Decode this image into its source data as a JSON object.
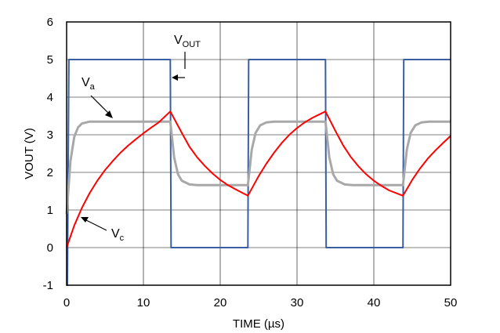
{
  "chart_data": {
    "type": "line",
    "xlabel": "TIME (µs)",
    "ylabel": "VOUT (V)",
    "xlim": [
      0,
      50
    ],
    "ylim": [
      -1,
      6
    ],
    "xticks": [
      0,
      10,
      20,
      30,
      40,
      50
    ],
    "yticks": [
      -1,
      0,
      1,
      2,
      3,
      4,
      5,
      6
    ],
    "grid": true,
    "series": [
      {
        "name": "VOUT",
        "color": "#3a5fa0",
        "points": [
          [
            0,
            -1
          ],
          [
            0.1,
            -1
          ],
          [
            0.3,
            5
          ],
          [
            13.5,
            5
          ],
          [
            13.6,
            0
          ],
          [
            23.6,
            0
          ],
          [
            23.7,
            5
          ],
          [
            33.7,
            5
          ],
          [
            33.8,
            0
          ],
          [
            43.8,
            0
          ],
          [
            43.9,
            5
          ],
          [
            50,
            5
          ]
        ]
      },
      {
        "name": "Va",
        "color": "#a8a8a8",
        "points": [
          [
            0,
            0.9
          ],
          [
            0.5,
            2.3
          ],
          [
            1,
            2.95
          ],
          [
            1.5,
            3.2
          ],
          [
            2,
            3.3
          ],
          [
            3,
            3.35
          ],
          [
            13.5,
            3.35
          ],
          [
            14,
            2.4
          ],
          [
            14.5,
            1.95
          ],
          [
            15,
            1.78
          ],
          [
            16,
            1.68
          ],
          [
            17,
            1.66
          ],
          [
            23.6,
            1.66
          ],
          [
            24.1,
            2.6
          ],
          [
            24.6,
            3.05
          ],
          [
            25.2,
            3.25
          ],
          [
            26,
            3.33
          ],
          [
            27,
            3.35
          ],
          [
            33.7,
            3.35
          ],
          [
            34.2,
            2.4
          ],
          [
            34.7,
            1.95
          ],
          [
            35.2,
            1.78
          ],
          [
            36.2,
            1.68
          ],
          [
            37.2,
            1.66
          ],
          [
            43.8,
            1.66
          ],
          [
            44.3,
            2.6
          ],
          [
            44.8,
            3.05
          ],
          [
            45.4,
            3.25
          ],
          [
            46.2,
            3.33
          ],
          [
            47.2,
            3.35
          ],
          [
            50,
            3.35
          ]
        ]
      },
      {
        "name": "Vc",
        "color": "#ff0000",
        "points": [
          [
            0,
            0
          ],
          [
            1,
            0.59
          ],
          [
            2,
            1.06
          ],
          [
            3,
            1.45
          ],
          [
            4,
            1.78
          ],
          [
            5,
            2.06
          ],
          [
            6,
            2.3
          ],
          [
            7,
            2.52
          ],
          [
            8,
            2.71
          ],
          [
            9,
            2.88
          ],
          [
            10,
            3.04
          ],
          [
            11,
            3.19
          ],
          [
            12,
            3.33
          ],
          [
            13.5,
            3.62
          ],
          [
            15,
            3.05
          ],
          [
            16,
            2.68
          ],
          [
            17,
            2.4
          ],
          [
            18,
            2.17
          ],
          [
            19,
            1.97
          ],
          [
            20,
            1.8
          ],
          [
            21,
            1.66
          ],
          [
            22,
            1.55
          ],
          [
            23.6,
            1.38
          ],
          [
            25,
            1.9
          ],
          [
            26,
            2.23
          ],
          [
            27,
            2.52
          ],
          [
            28,
            2.78
          ],
          [
            29,
            3.0
          ],
          [
            30,
            3.18
          ],
          [
            31,
            3.33
          ],
          [
            32,
            3.45
          ],
          [
            33.7,
            3.62
          ],
          [
            35,
            3.1
          ],
          [
            36,
            2.72
          ],
          [
            37,
            2.41
          ],
          [
            38,
            2.16
          ],
          [
            39,
            1.95
          ],
          [
            40,
            1.78
          ],
          [
            41,
            1.64
          ],
          [
            42,
            1.52
          ],
          [
            43.8,
            1.38
          ],
          [
            45,
            1.8
          ],
          [
            46,
            2.1
          ],
          [
            47,
            2.36
          ],
          [
            48,
            2.58
          ],
          [
            49,
            2.78
          ],
          [
            50,
            2.97
          ]
        ]
      }
    ],
    "annotations": [
      {
        "main": "V",
        "sub": "OUT"
      },
      {
        "main": "V",
        "sub": "a"
      },
      {
        "main": "V",
        "sub": "c"
      }
    ]
  }
}
